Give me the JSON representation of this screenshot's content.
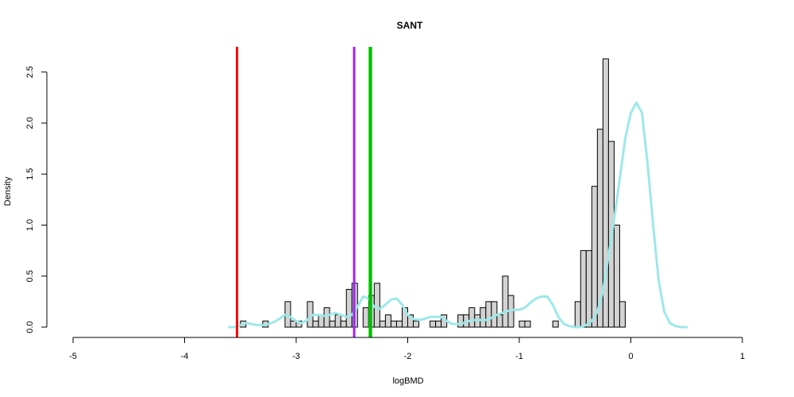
{
  "chart_data": {
    "type": "bar",
    "title": "SANT",
    "xlabel": "logBMD",
    "ylabel": "Density",
    "xlim": [
      -5,
      1
    ],
    "ylim": [
      0,
      2.6
    ],
    "x_ticks": [
      "-5",
      "-4",
      "-3",
      "-2",
      "-1",
      "0",
      "1"
    ],
    "y_ticks": [
      "0.0",
      "0.5",
      "1.0",
      "1.5",
      "2.0",
      "2.5"
    ],
    "bin_width": 0.05,
    "bins_start": [
      -3.5,
      -3.45,
      -3.4,
      -3.35,
      -3.3,
      -3.25,
      -3.2,
      -3.15,
      -3.1,
      -3.05,
      -3.0,
      -2.95,
      -2.9,
      -2.85,
      -2.8,
      -2.75,
      -2.7,
      -2.65,
      -2.6,
      -2.55,
      -2.5,
      -2.45,
      -2.4,
      -2.35,
      -2.3,
      -2.25,
      -2.2,
      -2.15,
      -2.1,
      -2.05,
      -2.0,
      -1.95,
      -1.9,
      -1.85,
      -1.8,
      -1.75,
      -1.7,
      -1.65,
      -1.6,
      -1.55,
      -1.5,
      -1.45,
      -1.4,
      -1.35,
      -1.3,
      -1.25,
      -1.2,
      -1.15,
      -1.1,
      -1.05,
      -1.0,
      -0.95,
      -0.9,
      -0.85,
      -0.8,
      -0.75,
      -0.7,
      -0.65,
      -0.6,
      -0.55,
      -0.5,
      -0.45,
      -0.4,
      -0.35,
      -0.3,
      -0.25,
      -0.2,
      -0.15,
      -0.1,
      -0.05,
      0.0,
      0.05,
      0.1,
      0.15,
      0.2,
      0.25,
      0.3
    ],
    "densities": [
      0.06,
      0,
      0,
      0,
      0.06,
      0,
      0,
      0,
      0.25,
      0.06,
      0.06,
      0,
      0.25,
      0.06,
      0.12,
      0.19,
      0.06,
      0.12,
      0.06,
      0.37,
      0.43,
      0,
      0.19,
      0.31,
      0.43,
      0.06,
      0.12,
      0.06,
      0.06,
      0.19,
      0.12,
      0.06,
      0,
      0,
      0.06,
      0.06,
      0.12,
      0,
      0,
      0.12,
      0.12,
      0.19,
      0.12,
      0.19,
      0.25,
      0.25,
      0.12,
      0.5,
      0.31,
      0,
      0.06,
      0.06,
      0,
      0,
      0,
      0,
      0.06,
      0,
      0,
      0,
      0.25,
      0.75,
      0.75,
      1.38,
      1.94,
      2.63,
      1.82,
      1.0,
      0.25,
      0,
      0,
      0,
      0,
      0,
      0,
      0,
      0
    ],
    "density_curve": {
      "color": "#9ee8e8",
      "x": [
        -3.6,
        -3.55,
        -3.5,
        -3.45,
        -3.4,
        -3.35,
        -3.3,
        -3.25,
        -3.2,
        -3.15,
        -3.1,
        -3.05,
        -3.0,
        -2.95,
        -2.9,
        -2.85,
        -2.8,
        -2.75,
        -2.7,
        -2.65,
        -2.6,
        -2.55,
        -2.5,
        -2.45,
        -2.4,
        -2.35,
        -2.3,
        -2.25,
        -2.2,
        -2.15,
        -2.1,
        -2.05,
        -2.0,
        -1.95,
        -1.9,
        -1.85,
        -1.8,
        -1.75,
        -1.7,
        -1.65,
        -1.6,
        -1.55,
        -1.5,
        -1.45,
        -1.4,
        -1.35,
        -1.3,
        -1.25,
        -1.2,
        -1.15,
        -1.1,
        -1.05,
        -1.0,
        -0.95,
        -0.9,
        -0.85,
        -0.8,
        -0.75,
        -0.7,
        -0.65,
        -0.6,
        -0.55,
        -0.5,
        -0.45,
        -0.4,
        -0.35,
        -0.3,
        -0.25,
        -0.2,
        -0.15,
        -0.1,
        -0.05,
        0.0,
        0.05,
        0.1,
        0.15,
        0.2,
        0.25,
        0.3,
        0.35,
        0.4,
        0.45,
        0.5
      ],
      "y": [
        0.0,
        0.0,
        0.02,
        0.04,
        0.03,
        0.02,
        0.02,
        0.03,
        0.05,
        0.08,
        0.12,
        0.1,
        0.06,
        0.04,
        0.07,
        0.12,
        0.12,
        0.11,
        0.12,
        0.14,
        0.12,
        0.1,
        0.12,
        0.2,
        0.3,
        0.28,
        0.2,
        0.18,
        0.22,
        0.27,
        0.28,
        0.22,
        0.12,
        0.08,
        0.07,
        0.08,
        0.1,
        0.1,
        0.1,
        0.06,
        0.03,
        0.03,
        0.04,
        0.06,
        0.07,
        0.07,
        0.07,
        0.09,
        0.12,
        0.14,
        0.16,
        0.17,
        0.17,
        0.19,
        0.24,
        0.28,
        0.3,
        0.3,
        0.22,
        0.1,
        0.03,
        0.01,
        0.0,
        0.0,
        0.02,
        0.06,
        0.15,
        0.35,
        0.7,
        1.05,
        1.45,
        1.85,
        2.1,
        2.2,
        2.1,
        1.6,
        1.0,
        0.45,
        0.15,
        0.04,
        0.01,
        0.0,
        0.0
      ]
    },
    "vertical_lines": [
      {
        "x": -3.53,
        "color": "#ff0000"
      },
      {
        "x": -2.48,
        "color": "#a020f0"
      },
      {
        "x": -2.34,
        "color": "#00cd00"
      },
      {
        "x": -2.33,
        "color": "#00bb00"
      }
    ]
  }
}
